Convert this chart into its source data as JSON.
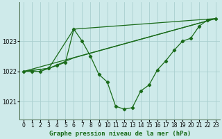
{
  "background_color": "#ceeaea",
  "grid_color": "#aacfcf",
  "line_color": "#1a6b1a",
  "marker_color": "#1a6b1a",
  "xlabel": "Graphe pression niveau de la mer (hPa)",
  "xlabel_fontsize": 6.5,
  "ylim": [
    1020.4,
    1024.3
  ],
  "xlim": [
    -0.5,
    23.5
  ],
  "yticks": [
    1021,
    1022,
    1023
  ],
  "xticks": [
    0,
    1,
    2,
    3,
    4,
    5,
    6,
    7,
    8,
    9,
    10,
    11,
    12,
    13,
    14,
    15,
    16,
    17,
    18,
    19,
    20,
    21,
    22,
    23
  ],
  "tick_fontsize": 5.5,
  "series1_x": [
    0,
    1,
    2,
    3,
    4,
    5,
    6,
    7,
    8,
    9,
    10,
    11,
    12,
    13,
    14,
    15,
    16,
    17,
    18,
    19,
    20,
    21,
    22,
    23
  ],
  "series1_y": [
    1022.0,
    1022.0,
    1022.0,
    1022.1,
    1022.2,
    1022.3,
    1023.4,
    1023.0,
    1022.5,
    1021.9,
    1021.65,
    1020.85,
    1020.75,
    1020.8,
    1021.35,
    1021.55,
    1022.05,
    1022.35,
    1022.7,
    1023.0,
    1023.1,
    1023.5,
    1023.7,
    1023.75
  ],
  "series2_x": [
    0,
    3,
    6,
    23
  ],
  "series2_y": [
    1022.0,
    1022.1,
    1023.4,
    1023.75
  ],
  "series3_x": [
    0,
    3,
    6,
    23
  ],
  "series3_y": [
    1022.0,
    1022.1,
    1022.45,
    1023.75
  ],
  "series4_x": [
    0,
    23
  ],
  "series4_y": [
    1022.0,
    1023.75
  ],
  "lw": 0.9,
  "ms": 2.2
}
